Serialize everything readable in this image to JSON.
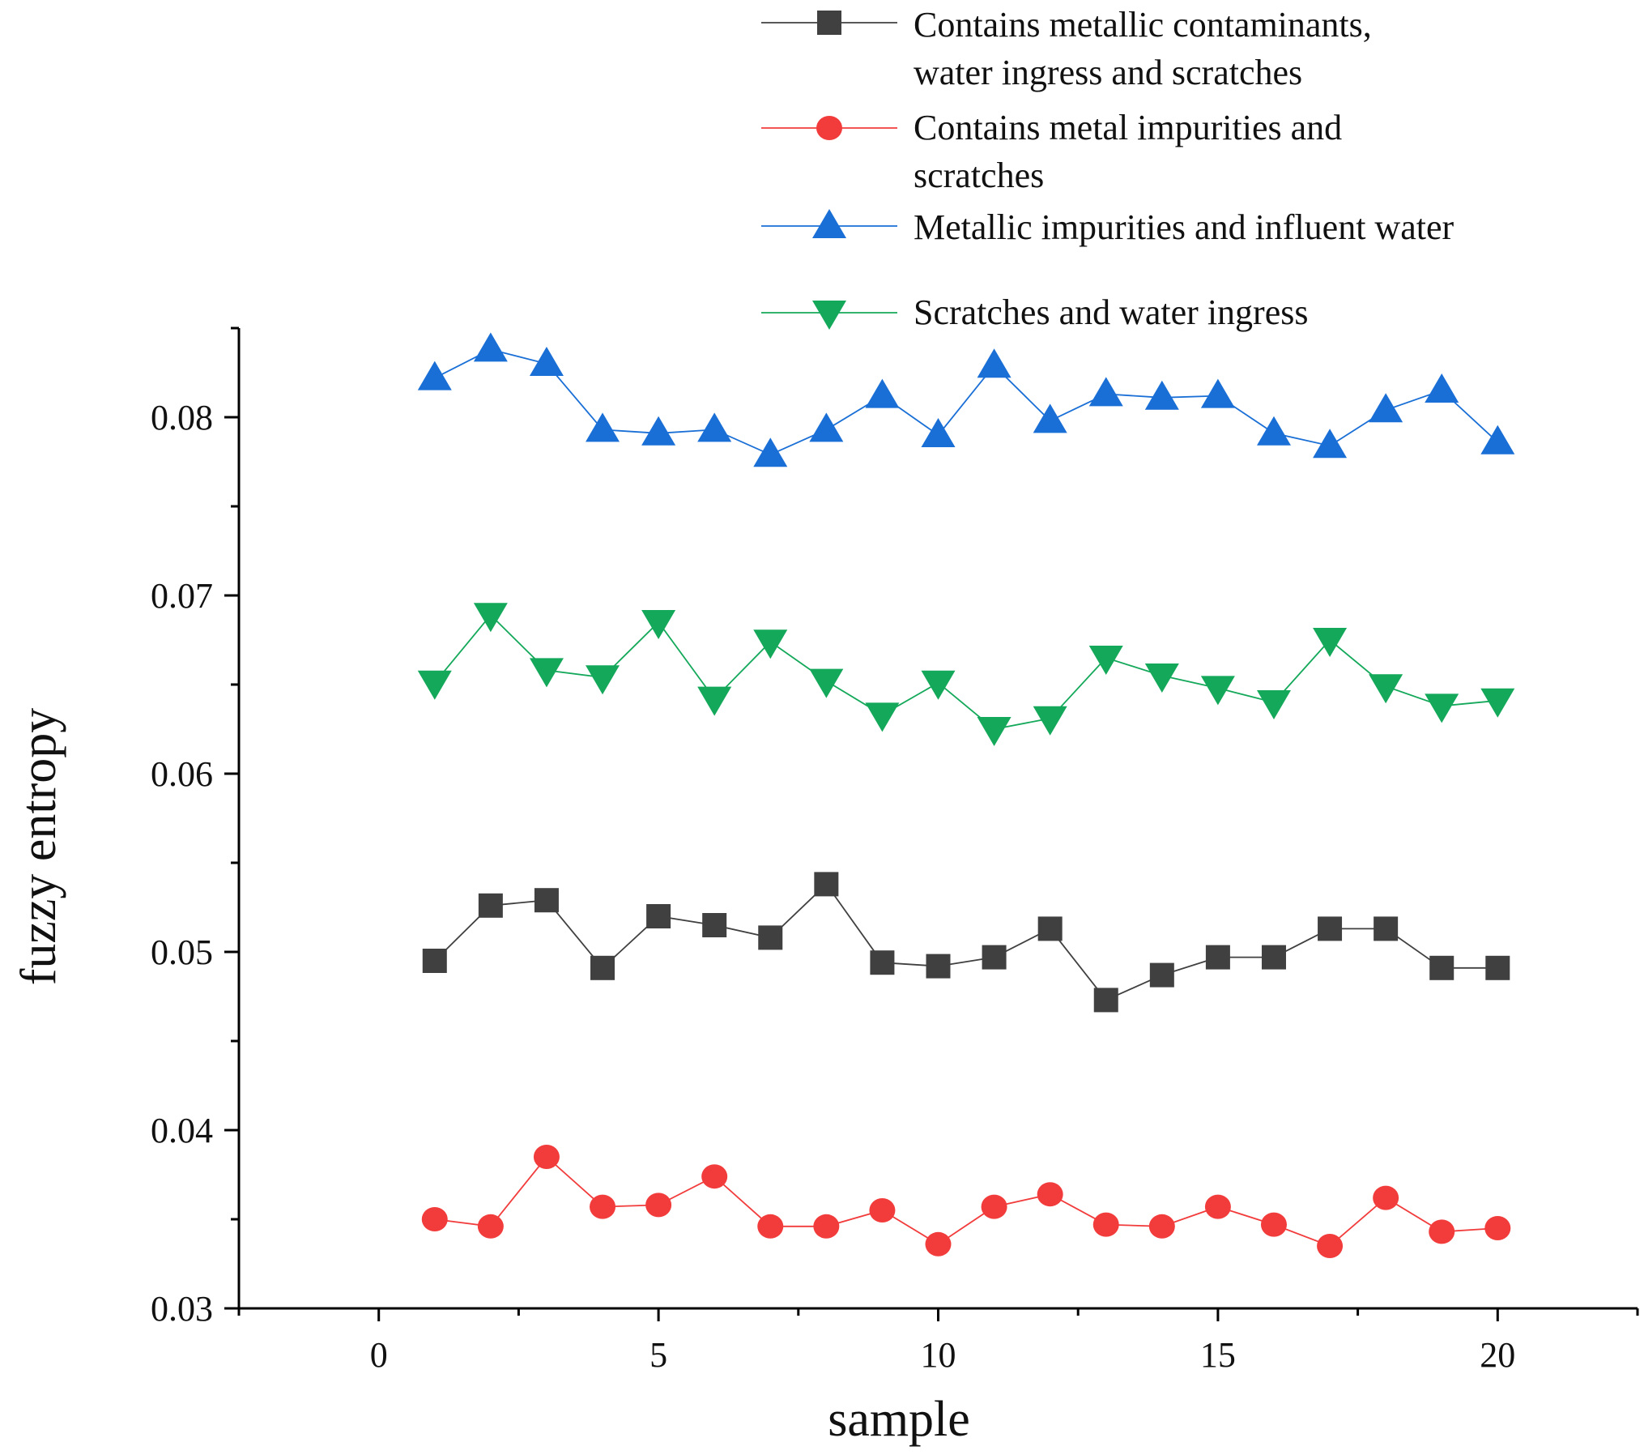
{
  "chart_data": {
    "type": "line",
    "title": "",
    "xlabel": "sample",
    "ylabel": "fuzzy entropy",
    "xlim": [
      -2.5,
      22.5
    ],
    "ylim": [
      0.03,
      0.085
    ],
    "x_ticks": [
      0,
      5,
      10,
      15,
      20
    ],
    "x_tick_labels": [
      "0",
      "5",
      "10",
      "15",
      "20"
    ],
    "y_ticks": [
      0.03,
      0.04,
      0.05,
      0.06,
      0.07,
      0.08
    ],
    "y_tick_labels": [
      "0.03",
      "0.04",
      "0.05",
      "0.06",
      "0.07",
      "0.08"
    ],
    "grid": false,
    "legend_position": "top-right",
    "x": [
      1,
      2,
      3,
      4,
      5,
      6,
      7,
      8,
      9,
      10,
      11,
      12,
      13,
      14,
      15,
      16,
      17,
      18,
      19,
      20
    ],
    "series": [
      {
        "name": "Contains metallic contaminants, water ingress and scratches",
        "legend_lines": [
          "Contains metallic contaminants,",
          "water ingress and scratches"
        ],
        "color": "#404040",
        "marker": "square",
        "values": [
          0.0495,
          0.0526,
          0.0529,
          0.0491,
          0.052,
          0.0515,
          0.0508,
          0.0538,
          0.0494,
          0.0492,
          0.0497,
          0.0513,
          0.0473,
          0.0487,
          0.0497,
          0.0497,
          0.0513,
          0.0513,
          0.0491,
          0.0491
        ]
      },
      {
        "name": "Contains metal impurities and scratches",
        "legend_lines": [
          "Contains metal impurities and",
          "scratches"
        ],
        "color": "#f23c3c",
        "marker": "circle",
        "values": [
          0.035,
          0.0346,
          0.0385,
          0.0357,
          0.0358,
          0.0374,
          0.0346,
          0.0346,
          0.0355,
          0.0336,
          0.0357,
          0.0364,
          0.0347,
          0.0346,
          0.0357,
          0.0347,
          0.0335,
          0.0362,
          0.0343,
          0.0345
        ]
      },
      {
        "name": "Metallic impurities and influent water",
        "legend_lines": [
          "Metallic impurities and influent water"
        ],
        "color": "#1a6fd6",
        "marker": "triangle-up",
        "values": [
          0.0822,
          0.0838,
          0.083,
          0.0793,
          0.0791,
          0.0793,
          0.0779,
          0.0793,
          0.0812,
          0.079,
          0.0829,
          0.0798,
          0.0813,
          0.0811,
          0.0812,
          0.0791,
          0.0784,
          0.0804,
          0.0815,
          0.0786
        ]
      },
      {
        "name": "Scratches and water ingress",
        "legend_lines": [
          "Scratches and water ingress"
        ],
        "color": "#14a85a",
        "marker": "triangle-down",
        "values": [
          0.0651,
          0.0689,
          0.0658,
          0.0654,
          0.0685,
          0.0642,
          0.0674,
          0.0652,
          0.0633,
          0.0651,
          0.0625,
          0.0631,
          0.0665,
          0.0655,
          0.0648,
          0.064,
          0.0675,
          0.0649,
          0.0638,
          0.0641
        ]
      }
    ]
  }
}
